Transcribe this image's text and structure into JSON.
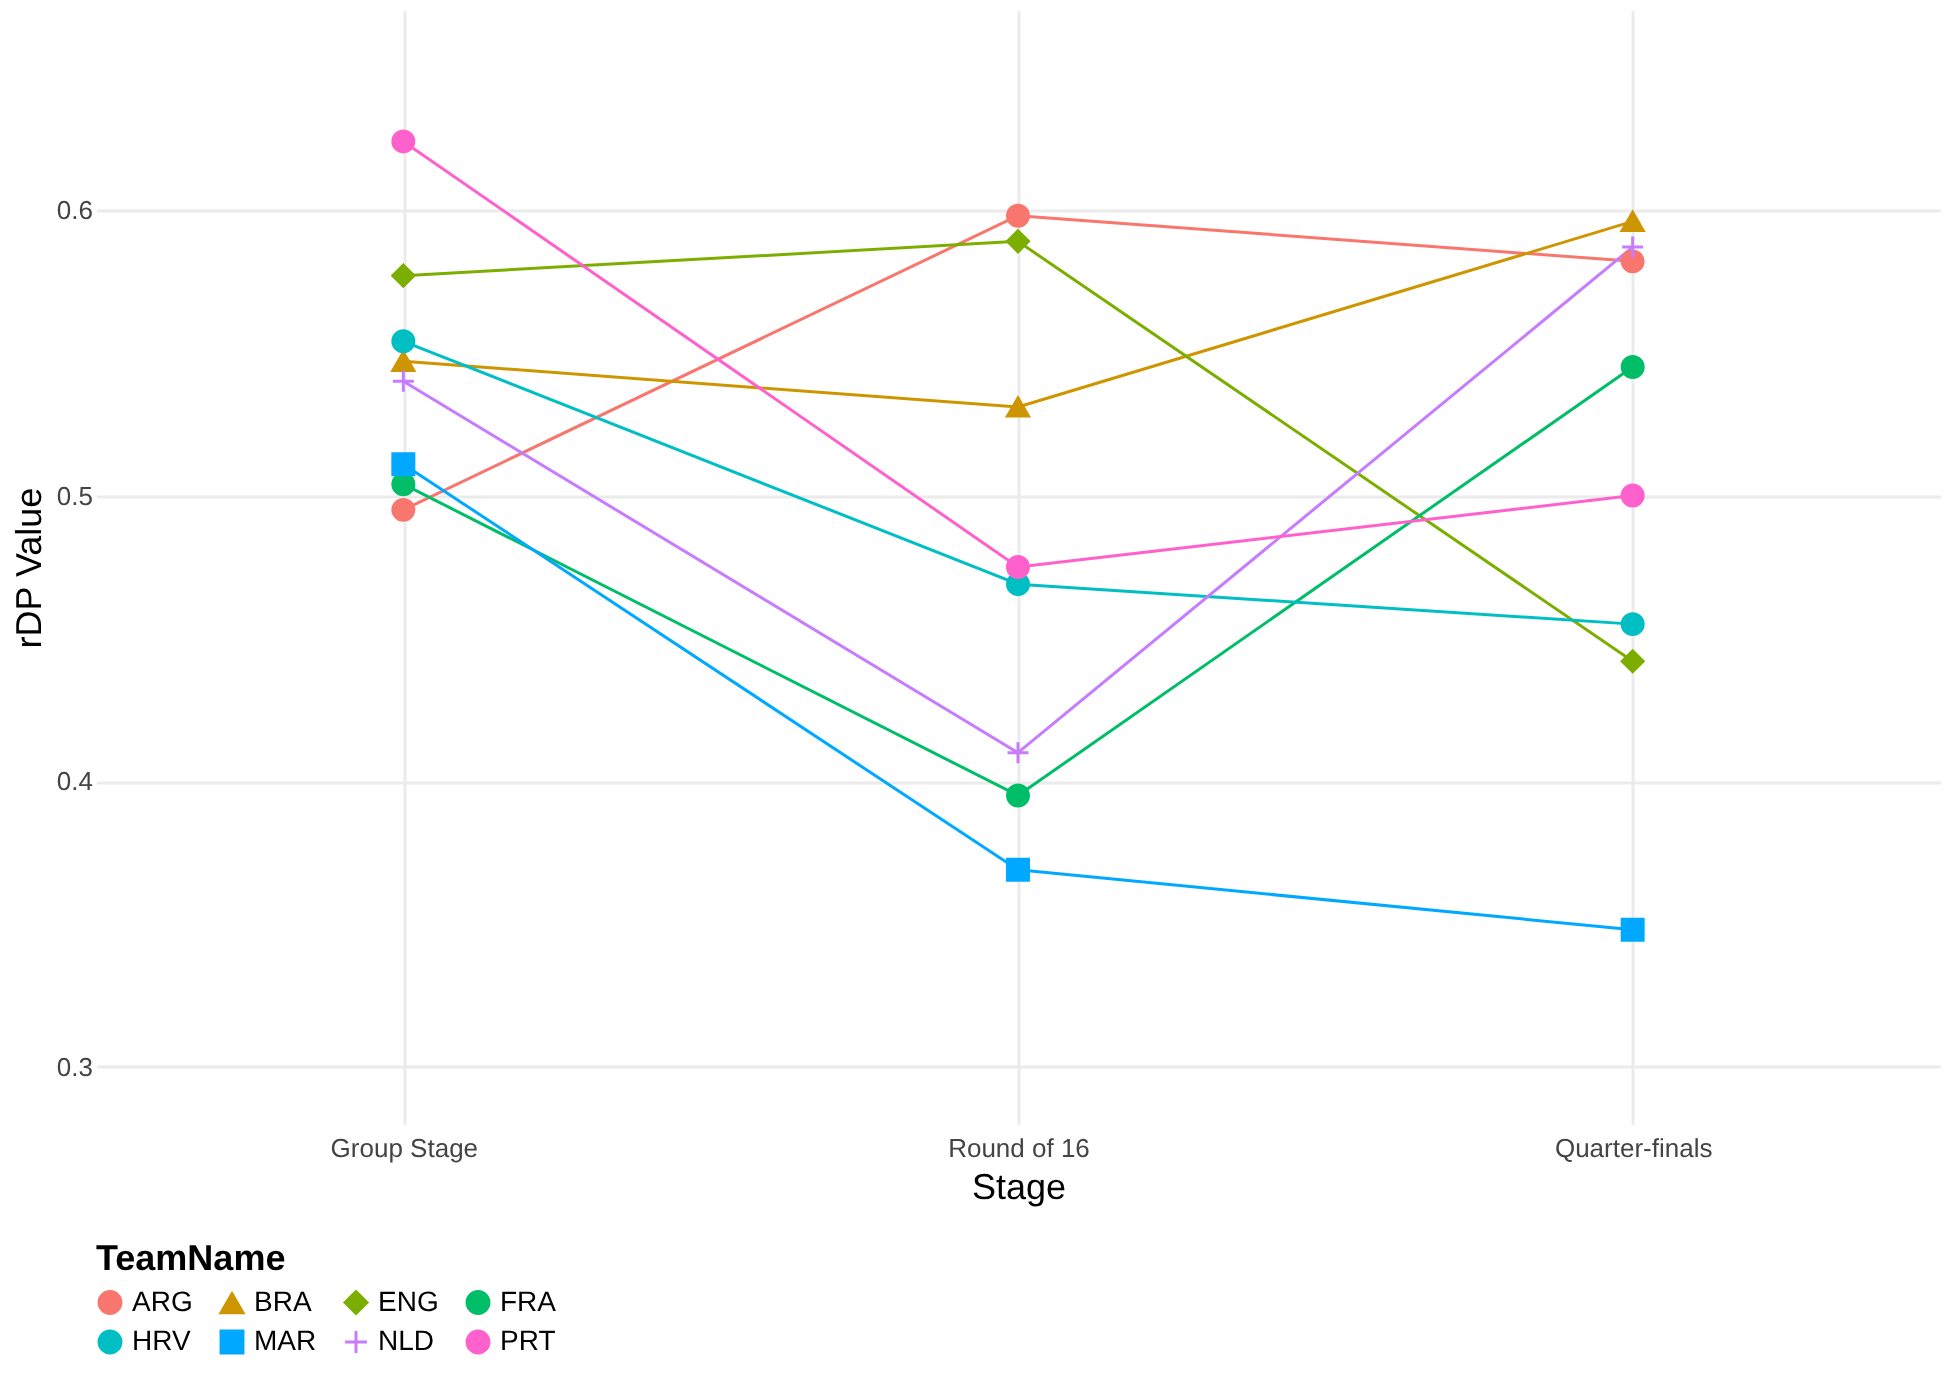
{
  "chart_data": {
    "type": "line",
    "xlabel": "Stage",
    "ylabel": "rDP Value",
    "legend_title": "TeamName",
    "categories": [
      "Group Stage",
      "Round of 16",
      "Quarter-finals"
    ],
    "series": [
      {
        "name": "ARG",
        "color": "#F8766D",
        "marker": "circle",
        "values": [
          0.495,
          0.598,
          0.582
        ]
      },
      {
        "name": "BRA",
        "color": "#CD9600",
        "marker": "triangle",
        "values": [
          0.547,
          0.531,
          0.596
        ]
      },
      {
        "name": "ENG",
        "color": "#7CAE00",
        "marker": "diamond",
        "values": [
          0.577,
          0.589,
          0.442
        ]
      },
      {
        "name": "FRA",
        "color": "#00BE67",
        "marker": "circle",
        "values": [
          0.504,
          0.395,
          0.545
        ]
      },
      {
        "name": "HRV",
        "color": "#00BFC4",
        "marker": "circle",
        "values": [
          0.554,
          0.469,
          0.455
        ]
      },
      {
        "name": "MAR",
        "color": "#00A9FF",
        "marker": "square",
        "values": [
          0.511,
          0.369,
          0.348
        ]
      },
      {
        "name": "NLD",
        "color": "#C77CFF",
        "marker": "cross",
        "values": [
          0.54,
          0.41,
          0.587
        ]
      },
      {
        "name": "PRT",
        "color": "#FF61CC",
        "marker": "circle",
        "values": [
          0.624,
          0.475,
          0.5
        ]
      }
    ],
    "ylim": [
      0.28,
      0.67
    ],
    "yticks": [
      0.3,
      0.4,
      0.5,
      0.6
    ],
    "grid": true,
    "legend": "bottom",
    "line_style": "solid"
  }
}
